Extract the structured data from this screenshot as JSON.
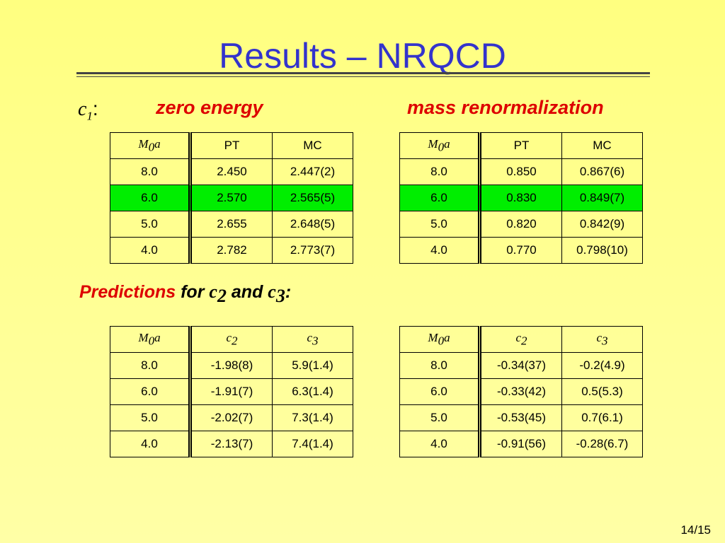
{
  "title": "Results – NRQCD",
  "c1_label": {
    "symbol": "c",
    "sub": "1",
    "punct": ":"
  },
  "zero_energy": {
    "heading": "zero energy",
    "table": {
      "header": [
        {
          "symbol": "M",
          "sub": "0",
          "tail": "a"
        },
        "PT",
        "MC"
      ],
      "rows": [
        [
          "8.0",
          "2.450",
          "2.447(2)"
        ],
        [
          "6.0",
          "2.570",
          "2.565(5)"
        ],
        [
          "5.0",
          "2.655",
          "2.648(5)"
        ],
        [
          "4.0",
          "2.782",
          "2.773(7)"
        ]
      ]
    }
  },
  "mass_renormalization": {
    "heading": "mass renormalization",
    "table": {
      "header": [
        {
          "symbol": "M",
          "sub": "0",
          "tail": "a"
        },
        "PT",
        "MC"
      ],
      "rows": [
        [
          "8.0",
          "0.850",
          "0.867(6)"
        ],
        [
          "6.0",
          "0.830",
          "0.849(7)"
        ],
        [
          "5.0",
          "0.820",
          "0.842(9)"
        ],
        [
          "4.0",
          "0.770",
          "0.798(10)"
        ]
      ]
    }
  },
  "predictions": {
    "label": {
      "word": "Predictions",
      "for": "for",
      "c2": {
        "symbol": "c",
        "sub": "2"
      },
      "and": "and",
      "c3": {
        "symbol": "c",
        "sub": "3"
      },
      "punct": ":"
    },
    "tables": [
      {
        "header": [
          {
            "symbol": "M",
            "sub": "0",
            "tail": "a"
          },
          {
            "symbol": "c",
            "sub": "2"
          },
          {
            "symbol": "c",
            "sub": "3"
          }
        ],
        "rows": [
          [
            "8.0",
            "-1.98(8)",
            "5.9(1.4)"
          ],
          [
            "6.0",
            "-1.91(7)",
            "6.3(1.4)"
          ],
          [
            "5.0",
            "-2.02(7)",
            "7.3(1.4)"
          ],
          [
            "4.0",
            "-2.13(7)",
            "7.4(1.4)"
          ]
        ]
      },
      {
        "header": [
          {
            "symbol": "M",
            "sub": "0",
            "tail": "a"
          },
          {
            "symbol": "c",
            "sub": "2"
          },
          {
            "symbol": "c",
            "sub": "3"
          }
        ],
        "rows": [
          [
            "8.0",
            "-0.34(37)",
            "-0.2(4.9)"
          ],
          [
            "6.0",
            "-0.33(42)",
            "0.5(5.3)"
          ],
          [
            "5.0",
            "-0.53(45)",
            "0.7(6.1)"
          ],
          [
            "4.0",
            "-0.91(56)",
            "-0.28(6.7)"
          ]
        ]
      }
    ]
  },
  "page_number": "14/15"
}
